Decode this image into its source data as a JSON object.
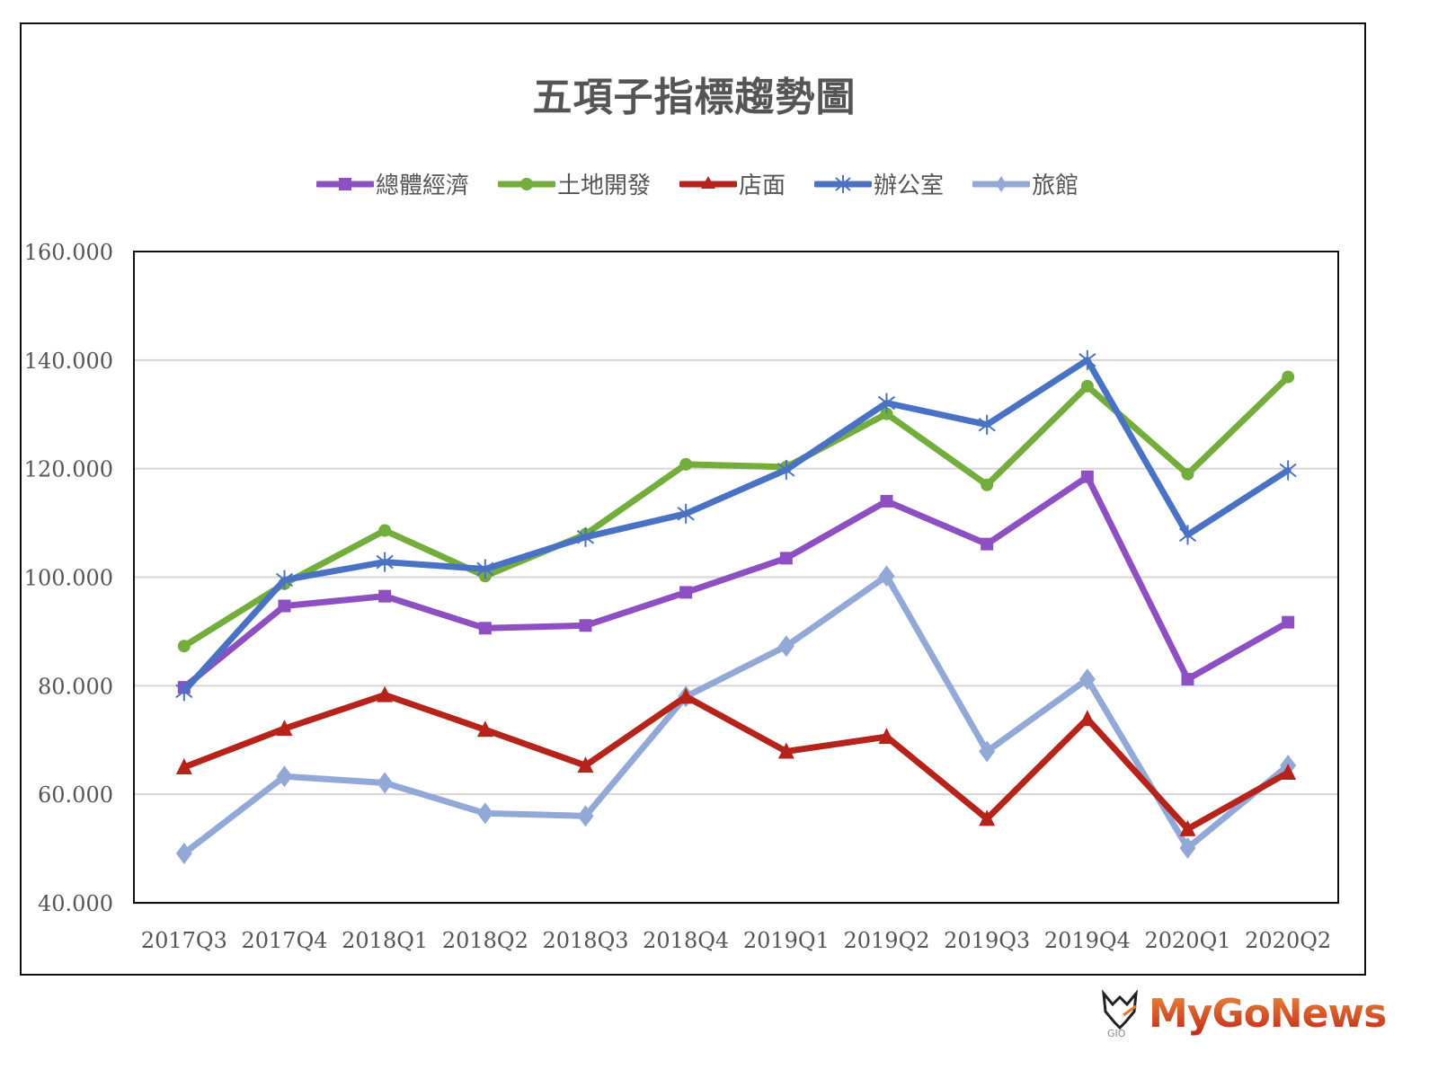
{
  "chart_data": {
    "type": "line",
    "title": "五項子指標趨勢圖",
    "xlabel": "",
    "ylabel": "",
    "ylim": [
      40,
      160
    ],
    "yticks": [
      "160.000",
      "140.000",
      "120.000",
      "100.000",
      "80.000",
      "60.000",
      "40.000"
    ],
    "grid": true,
    "legend_position": "top",
    "categories": [
      "2017Q3",
      "2017Q4",
      "2018Q1",
      "2018Q2",
      "2018Q3",
      "2018Q4",
      "2019Q1",
      "2019Q2",
      "2019Q3",
      "2019Q4",
      "2020Q1",
      "2020Q2"
    ],
    "series": [
      {
        "name": "總體經濟",
        "color": "#8e4fc3",
        "marker": "square",
        "values": [
          79.7,
          94.7,
          96.5,
          90.6,
          91.1,
          97.2,
          103.5,
          114.0,
          106.1,
          118.5,
          81.2,
          91.7
        ]
      },
      {
        "name": "土地開發",
        "color": "#73ad3c",
        "marker": "circle",
        "values": [
          87.3,
          98.8,
          108.6,
          100.2,
          107.9,
          120.8,
          120.3,
          130.1,
          117.0,
          135.2,
          119.0,
          136.9
        ]
      },
      {
        "name": "店面",
        "color": "#b5231b",
        "marker": "triangle",
        "values": [
          65.0,
          72.1,
          78.3,
          71.9,
          65.3,
          78.0,
          67.9,
          70.6,
          55.5,
          73.9,
          53.6,
          64.0
        ]
      },
      {
        "name": "辦公室",
        "color": "#4a72c4",
        "marker": "asterisk",
        "values": [
          79.0,
          99.5,
          102.8,
          101.5,
          107.4,
          111.7,
          119.8,
          132.1,
          128.1,
          140.0,
          107.8,
          119.7
        ]
      },
      {
        "name": "旅館",
        "color": "#92a9d8",
        "marker": "diamond",
        "values": [
          49.1,
          63.3,
          62.1,
          56.5,
          56.0,
          78.0,
          87.3,
          100.2,
          67.9,
          81.2,
          50.1,
          65.3
        ]
      }
    ]
  },
  "watermark": {
    "text": "MyGoNews",
    "icon": "fox-logo-icon"
  }
}
